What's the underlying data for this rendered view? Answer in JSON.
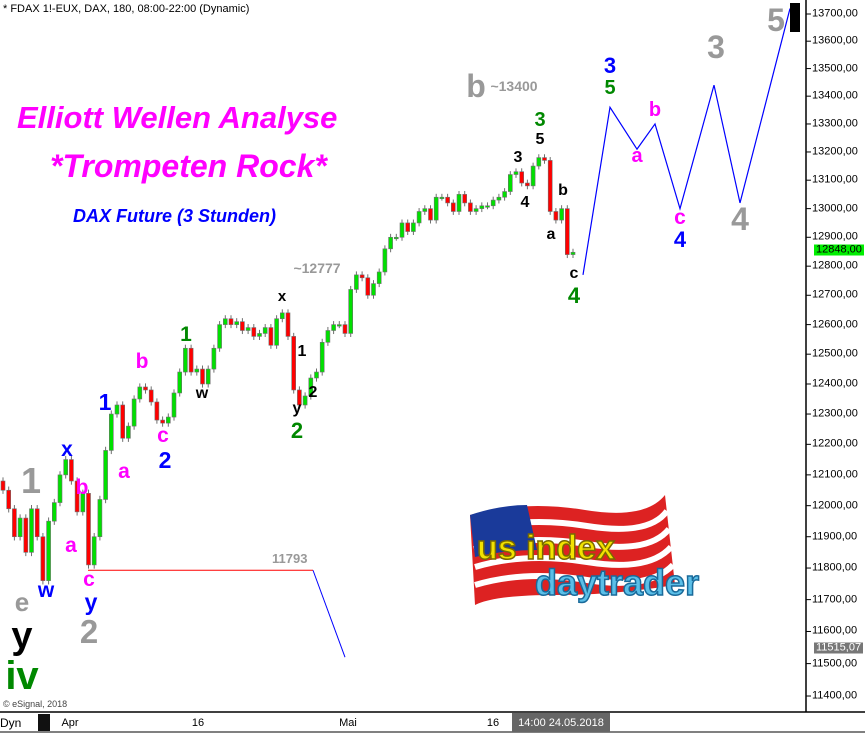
{
  "header": {
    "symbol_line": "* FDAX 1!-EUX, DAX, 180, 08:00-22:00 (Dynamic)",
    "copyright": "© eSignal, 2018"
  },
  "titles": {
    "main": "Elliott Wellen Analyse",
    "sub": "*Trompeten Rock*",
    "instrument": "DAX Future (3 Stunden)"
  },
  "logo": {
    "text": "us index daytrader"
  },
  "colors": {
    "up": "#00e000",
    "down": "#ff0000",
    "wick": "#707070",
    "projection": "#0000ff",
    "level_line": "#ff0000",
    "magenta": "#ff00ff",
    "blue": "#0000ff",
    "green": "#008800",
    "gray": "#999999",
    "black": "#000000",
    "last_price_bg": "#00ee00"
  },
  "chart_data": {
    "type": "candlestick",
    "yscale": "log",
    "ylim": [
      11350,
      13750
    ],
    "y_ticks": [
      "13700,00",
      "13600,00",
      "13500,00",
      "13400,00",
      "13300,00",
      "13200,00",
      "13100,00",
      "13000,00",
      "12900,00",
      "12800,00",
      "12700,00",
      "12600,00",
      "12500,00",
      "12400,00",
      "12300,00",
      "12200,00",
      "12100,00",
      "12000,00",
      "11900,00",
      "11800,00",
      "11700,00",
      "11600,00",
      "11500,00",
      "11400,00"
    ],
    "y_tick_values": [
      13700,
      13600,
      13500,
      13400,
      13300,
      13200,
      13100,
      13000,
      12900,
      12800,
      12700,
      12600,
      12500,
      12400,
      12300,
      12200,
      12100,
      12000,
      11900,
      11800,
      11700,
      11600,
      11500,
      11400
    ],
    "x_ticks": [
      "Apr",
      "16",
      "Mai",
      "16"
    ],
    "cursor_time": "14:00 24.05.2018",
    "closes": [
      12050,
      11990,
      11900,
      11960,
      11850,
      11990,
      11900,
      11760,
      11950,
      12010,
      12100,
      12150,
      12080,
      11980,
      12040,
      11810,
      11900,
      12020,
      12180,
      12300,
      12330,
      12220,
      12260,
      12350,
      12390,
      12380,
      12340,
      12280,
      12270,
      12290,
      12370,
      12440,
      12520,
      12440,
      12450,
      12400,
      12450,
      12520,
      12600,
      12620,
      12600,
      12610,
      12580,
      12590,
      12560,
      12570,
      12590,
      12530,
      12620,
      12640,
      12560,
      12380,
      12330,
      12360,
      12420,
      12440,
      12540,
      12580,
      12600,
      12600,
      12570,
      12720,
      12770,
      12760,
      12700,
      12740,
      12780,
      12860,
      12900,
      12900,
      12950,
      12920,
      12950,
      12990,
      13000,
      12960,
      13040,
      13040,
      13020,
      12990,
      13050,
      13020,
      12990,
      13000,
      13010,
      13010,
      13030,
      13040,
      13060,
      13120,
      13130,
      13090,
      13080,
      13150,
      13180,
      13170,
      12990,
      12960,
      13000,
      12840,
      12848
    ],
    "last_price": "12848,00",
    "marker_price": "11515,07",
    "level": {
      "value": 11793,
      "label": "11793"
    },
    "projection_prices": [
      12770,
      13360,
      13210,
      13300,
      13000,
      13440,
      13020,
      13720
    ],
    "level_projection_prices": [
      11793,
      11520
    ]
  },
  "wave_labels": [
    {
      "t": "5",
      "c": "gray"
    },
    {
      "t": "3",
      "c": "gray"
    },
    {
      "t": "b",
      "c": "gray"
    },
    {
      "t": "~13400",
      "c": "gray"
    },
    {
      "t": "3",
      "c": "blue"
    },
    {
      "t": "5",
      "c": "green"
    },
    {
      "t": "b",
      "c": "magenta"
    },
    {
      "t": "a",
      "c": "magenta"
    },
    {
      "t": "c",
      "c": "magenta"
    },
    {
      "t": "4",
      "c": "blue"
    },
    {
      "t": "4",
      "c": "gray"
    },
    {
      "t": "3",
      "c": "green"
    },
    {
      "t": "5",
      "c": "black"
    },
    {
      "t": "3",
      "c": "black"
    },
    {
      "t": "4",
      "c": "black"
    },
    {
      "t": "b",
      "c": "black"
    },
    {
      "t": "a",
      "c": "black"
    },
    {
      "t": "c",
      "c": "black"
    },
    {
      "t": "4",
      "c": "green"
    },
    {
      "t": "~12777",
      "c": "gray"
    },
    {
      "t": "x",
      "c": "black"
    },
    {
      "t": "1",
      "c": "black"
    },
    {
      "t": "2",
      "c": "black"
    },
    {
      "t": "y",
      "c": "black"
    },
    {
      "t": "2",
      "c": "green"
    },
    {
      "t": "1",
      "c": "green"
    },
    {
      "t": "w",
      "c": "black"
    },
    {
      "t": "b",
      "c": "magenta"
    },
    {
      "t": "1",
      "c": "blue"
    },
    {
      "t": "c",
      "c": "magenta"
    },
    {
      "t": "2",
      "c": "blue"
    },
    {
      "t": "a",
      "c": "magenta"
    },
    {
      "t": "x",
      "c": "blue"
    },
    {
      "t": "b",
      "c": "magenta"
    },
    {
      "t": "1",
      "c": "gray"
    },
    {
      "t": "a",
      "c": "magenta"
    },
    {
      "t": "w",
      "c": "blue"
    },
    {
      "t": "c",
      "c": "magenta"
    },
    {
      "t": "y",
      "c": "blue"
    },
    {
      "t": "2",
      "c": "gray"
    },
    {
      "t": "e",
      "c": "gray"
    },
    {
      "t": "y",
      "c": "black"
    },
    {
      "t": "iv",
      "c": "green"
    }
  ],
  "time_axis": {
    "mode_label": "Dyn"
  }
}
